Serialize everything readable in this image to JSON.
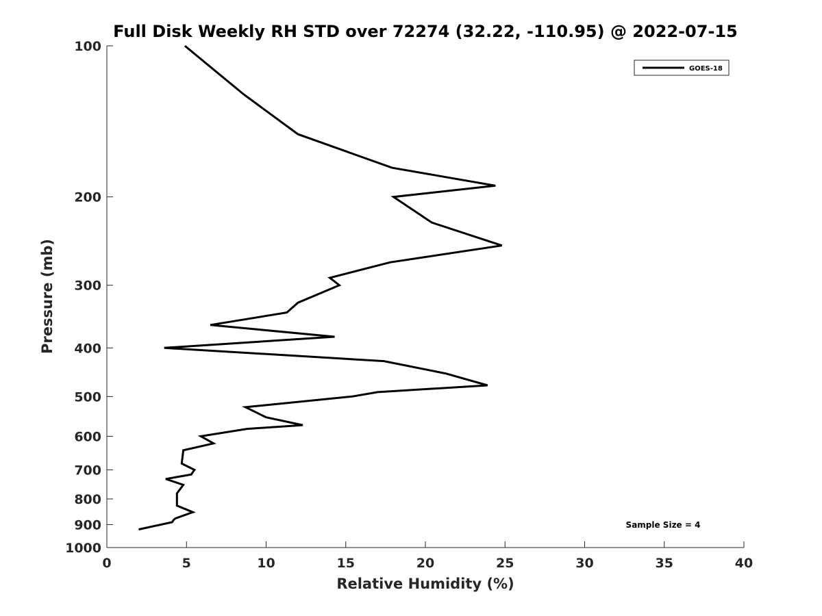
{
  "chart_data": {
    "type": "line",
    "title": "Full Disk Weekly RH STD over 72274 (32.22, -110.95) @ 2022-07-15",
    "xlabel": "Relative Humidity (%)",
    "ylabel": "Pressure (mb)",
    "xlim": [
      0,
      40
    ],
    "ylim": [
      100,
      1000
    ],
    "y_scale": "log",
    "y_reversed": true,
    "x_ticks": [
      0,
      5,
      10,
      15,
      20,
      25,
      30,
      35,
      40
    ],
    "x_tick_labels": [
      "0",
      "5",
      "10",
      "15",
      "20",
      "25",
      "30",
      "35",
      "40"
    ],
    "y_ticks": [
      100,
      200,
      300,
      400,
      500,
      600,
      700,
      800,
      900,
      1000
    ],
    "y_tick_labels": [
      "100",
      "200",
      "300",
      "400",
      "500",
      "600",
      "700",
      "800",
      "900",
      "1000"
    ],
    "grid": false,
    "legend_position": "top-right",
    "series": [
      {
        "name": "GOES-18",
        "color": "#000000",
        "points": [
          [
            4.9,
            100
          ],
          [
            8.6,
            125
          ],
          [
            12.0,
            150
          ],
          [
            17.9,
            175
          ],
          [
            24.4,
            190
          ],
          [
            18.0,
            200
          ],
          [
            20.4,
            225
          ],
          [
            24.8,
            250
          ],
          [
            17.8,
            270
          ],
          [
            14.0,
            290
          ],
          [
            14.6,
            300
          ],
          [
            12.0,
            325
          ],
          [
            11.3,
            340
          ],
          [
            6.5,
            360
          ],
          [
            14.3,
            380
          ],
          [
            3.6,
            400
          ],
          [
            17.4,
            425
          ],
          [
            21.3,
            450
          ],
          [
            23.9,
            475
          ],
          [
            17.0,
            490
          ],
          [
            15.4,
            500
          ],
          [
            8.7,
            525
          ],
          [
            10.0,
            550
          ],
          [
            12.3,
            570
          ],
          [
            8.8,
            580
          ],
          [
            5.9,
            600
          ],
          [
            6.7,
            620
          ],
          [
            4.8,
            640
          ],
          [
            4.7,
            680
          ],
          [
            5.5,
            700
          ],
          [
            5.3,
            715
          ],
          [
            3.7,
            730
          ],
          [
            4.8,
            750
          ],
          [
            4.4,
            780
          ],
          [
            4.4,
            825
          ],
          [
            5.4,
            850
          ],
          [
            4.3,
            875
          ],
          [
            4.2,
            880
          ],
          [
            4.1,
            890
          ],
          [
            2.0,
            920
          ]
        ]
      }
    ],
    "annotations": [
      "Sample Size = 4"
    ]
  }
}
